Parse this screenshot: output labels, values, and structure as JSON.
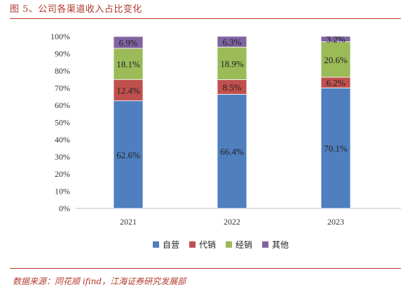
{
  "figure": {
    "title": "图 5、公司各渠道收入占比变化",
    "source": "数据来源：同花顺 ifind，江海证券研究发展部"
  },
  "chart_data": {
    "type": "bar",
    "stacked": true,
    "categories": [
      "2021",
      "2022",
      "2023"
    ],
    "series": [
      {
        "name": "自营",
        "color": "#4f7fbe",
        "values": [
          62.6,
          66.4,
          70.1
        ],
        "labels": [
          "62.6%",
          "66.4%",
          "70.1%"
        ]
      },
      {
        "name": "代销",
        "color": "#c0504d",
        "values": [
          12.4,
          8.5,
          6.2
        ],
        "labels": [
          "12.4%",
          "8.5%",
          "6.2%"
        ]
      },
      {
        "name": "经销",
        "color": "#9bbb59",
        "values": [
          18.1,
          18.9,
          20.6
        ],
        "labels": [
          "18.1%",
          "18.9%",
          "20.6%"
        ]
      },
      {
        "name": "其他",
        "color": "#8064a2",
        "values": [
          6.9,
          6.3,
          3.2
        ],
        "labels": [
          "6.9%",
          "6.3%",
          "3.2%"
        ]
      }
    ],
    "yticks": [
      "0%",
      "10%",
      "20%",
      "30%",
      "40%",
      "50%",
      "60%",
      "70%",
      "80%",
      "90%",
      "100%"
    ],
    "ylim": [
      0,
      100
    ],
    "grid": false,
    "legend": "bottom"
  }
}
